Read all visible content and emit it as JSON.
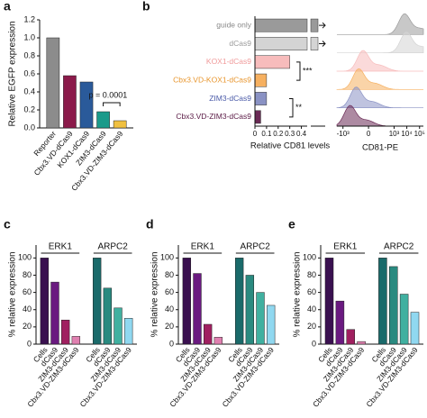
{
  "chart_data": [
    {
      "type": "bar",
      "panel": "a",
      "ylabel": "Relative EGFP expression",
      "categories": [
        "Reporter",
        "Cbx3.VD-dCas9",
        "KOX1-dCas9",
        "ZIM3-dCas9",
        "Cbx3.VD-ZIM3-dCas9"
      ],
      "values": [
        1.0,
        0.58,
        0.51,
        0.18,
        0.08
      ],
      "colors": [
        "#8c8c8c",
        "#8b1a4a",
        "#2a5a9a",
        "#1a9a8a",
        "#f0c040"
      ],
      "ylim": [
        0,
        1.2
      ],
      "yticks": [
        {
          "value": 0,
          "label": "0.0"
        },
        0.2,
        0.4,
        0.6,
        0.8,
        {
          "value": 1,
          "label": "1.0"
        },
        1.2
      ],
      "annotation": "p = 0.0001"
    },
    {
      "type": "hbar",
      "panel": "b",
      "xlabel": "Relative CD81 levels",
      "categories": [
        "guide only",
        "dCas9",
        "KOX1-dCas9",
        "Cbx3.VD-KOX1-dCas9",
        "ZIM3-dCas9",
        "Cbx3.VD-ZIM3-dCas9"
      ],
      "values": [
        1.0,
        1.0,
        0.3,
        0.1,
        0.1,
        0.05
      ],
      "colors": [
        "#9a9a9a",
        "#d4d4d4",
        "#f7bcbc",
        "#f6b060",
        "#8a92c4",
        "#6a2a55"
      ],
      "label_colors": [
        "#8a8a8a",
        "#9a9a9a",
        "#f09a9a",
        "#e8962e",
        "#4a5aa8",
        "#5a1a45"
      ],
      "xlim": [
        0,
        1.1
      ],
      "xbreak": [
        0.45,
        0.9
      ],
      "xticks": [
        0,
        0.1,
        0.2,
        0.3,
        0.4
      ],
      "annotations": [
        "***",
        "**"
      ]
    },
    {
      "type": "ridgeline",
      "xlabel": "CD81-PE",
      "xlim": [
        -3000,
        200000
      ],
      "xticks": [
        {
          "value": -1000,
          "label": "-10³"
        },
        0,
        {
          "value": 1000,
          "label": "10³"
        },
        {
          "value": 10000,
          "label": "10⁴"
        },
        {
          "value": 100000,
          "label": "10⁵"
        }
      ]
    },
    {
      "type": "groupbar",
      "panel": "c",
      "ylabel": "% relative expression",
      "categories": [
        "Cells",
        "dCas9",
        "ZIM3-dCas9",
        "Cbx3.VD-ZIM3-dCas9"
      ],
      "series": [
        {
          "name": "ERK1",
          "colors": [
            "#3a1050",
            "#6a1a80",
            "#a02060",
            "#e080b0"
          ],
          "values": [
            100,
            72,
            28,
            9
          ]
        },
        {
          "name": "ARPC2",
          "colors": [
            "#1a6a6a",
            "#2a8a80",
            "#40b0a0",
            "#90d8f0"
          ],
          "values": [
            100,
            65,
            42,
            30
          ]
        }
      ],
      "ylim": [
        0,
        115
      ],
      "yticks": [
        0,
        20,
        40,
        60,
        80,
        100
      ]
    },
    {
      "type": "groupbar",
      "panel": "d",
      "ylabel": "% relative expression",
      "categories": [
        "Cells",
        "dCas9",
        "ZIM3-dCas9",
        "Cbx3.VD-ZIM3-dCas9"
      ],
      "series": [
        {
          "name": "ERK1",
          "colors": [
            "#3a1050",
            "#6a1a80",
            "#a02060",
            "#e080b0"
          ],
          "values": [
            100,
            82,
            23,
            8
          ]
        },
        {
          "name": "ARPC2",
          "colors": [
            "#1a6a6a",
            "#2a8a80",
            "#40b0a0",
            "#90d8f0"
          ],
          "values": [
            100,
            80,
            60,
            45
          ]
        }
      ],
      "ylim": [
        0,
        115
      ],
      "yticks": [
        0,
        20,
        40,
        60,
        80,
        100
      ]
    },
    {
      "type": "groupbar",
      "panel": "e",
      "ylabel": "% relative expression",
      "categories": [
        "Cells",
        "dCas9",
        "ZIM3-dCas9",
        "Cbx3.VD-ZIM3-dCas9"
      ],
      "series": [
        {
          "name": "ERK1",
          "colors": [
            "#3a1050",
            "#6a1a80",
            "#a02060",
            "#e080b0"
          ],
          "values": [
            100,
            50,
            17,
            3
          ]
        },
        {
          "name": "ARPC2",
          "colors": [
            "#1a6a6a",
            "#2a8a80",
            "#40b0a0",
            "#90d8f0"
          ],
          "values": [
            100,
            90,
            58,
            37
          ]
        }
      ],
      "ylim": [
        0,
        115
      ],
      "yticks": [
        0,
        20,
        40,
        60,
        80,
        100
      ]
    }
  ]
}
